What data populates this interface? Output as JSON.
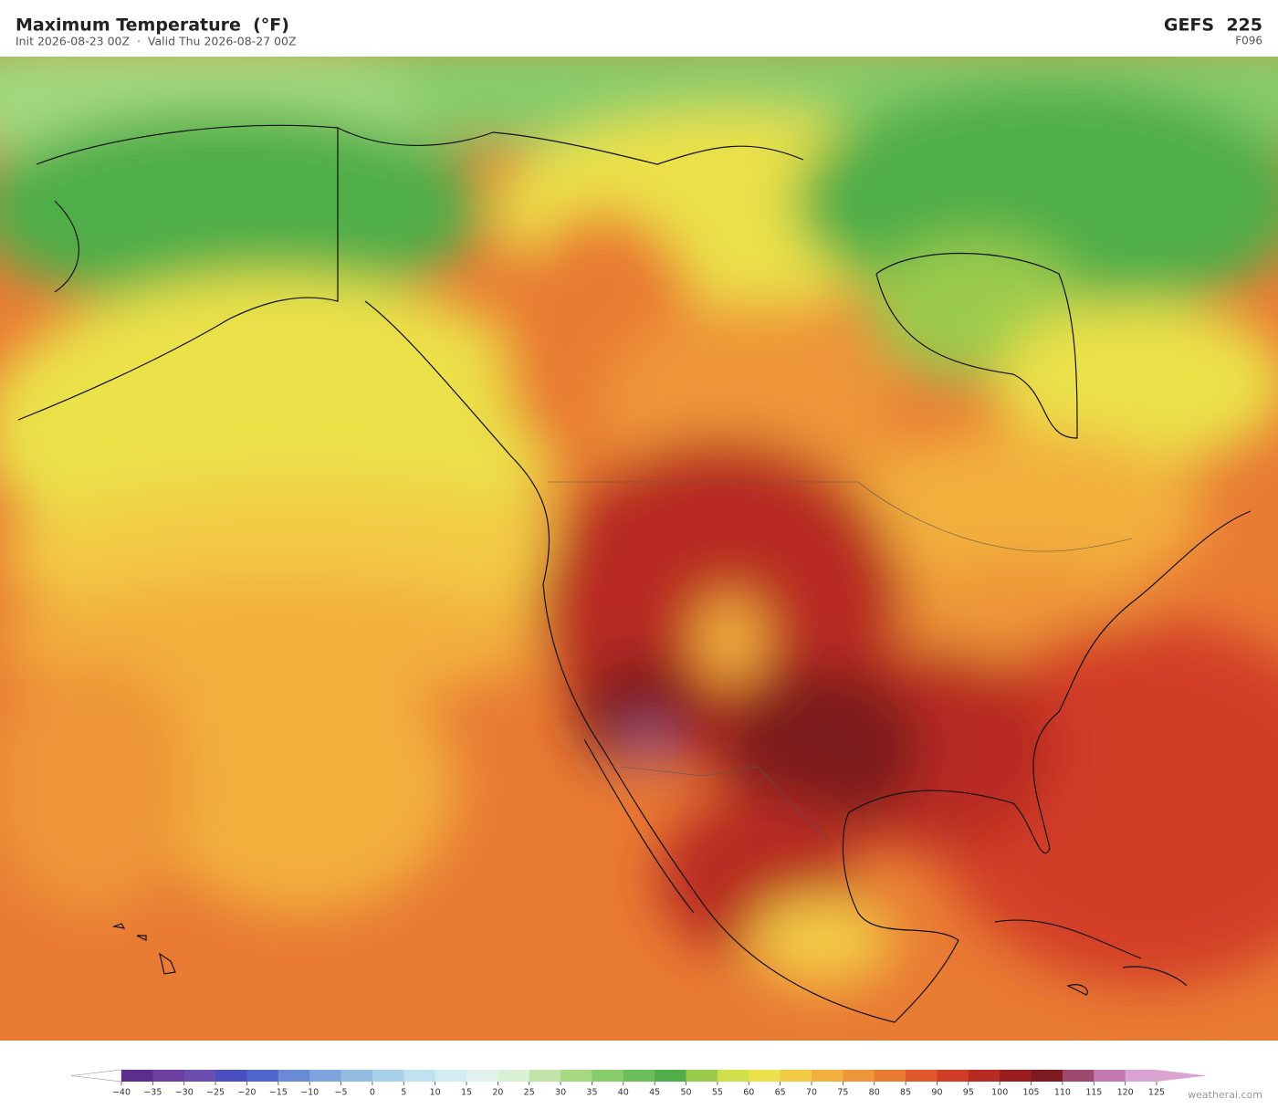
{
  "header": {
    "title": "Maximum Temperature  (°F)",
    "subtitle": "Init 2026-08-23 00Z  ·  Valid Thu 2026-08-27 00Z",
    "model": "GEFS  225",
    "forecast_hour": "F096"
  },
  "colorbar": {
    "ticks": [
      {
        "value": -40,
        "label": "−40"
      },
      {
        "value": -35,
        "label": "−35"
      },
      {
        "value": -30,
        "label": "−30"
      },
      {
        "value": -25,
        "label": "−25"
      },
      {
        "value": -20,
        "label": "−20"
      },
      {
        "value": -15,
        "label": "−15"
      },
      {
        "value": -10,
        "label": "−10"
      },
      {
        "value": -5,
        "label": "−5"
      },
      0,
      5,
      10,
      15,
      20,
      25,
      30,
      35,
      40,
      45,
      50,
      55,
      60,
      65,
      70,
      75,
      80,
      85,
      90,
      95,
      100,
      105,
      110,
      115,
      120,
      125
    ],
    "colors": [
      "#5b2d8e",
      "#6e3fa0",
      "#6a4fb0",
      "#4a4fc0",
      "#4f67cc",
      "#6a8ad6",
      "#7fa3dc",
      "#95bde3",
      "#a9d1ea",
      "#c0e1ef",
      "#d3ecf2",
      "#e2f3ef",
      "#d9f0d4",
      "#bfe3a8",
      "#a4d97f",
      "#86cc6a",
      "#6bbf5a",
      "#4fae4a",
      "#9bcb4b",
      "#cfe04a",
      "#ebe14a",
      "#f3cb44",
      "#f2b03e",
      "#ee9638",
      "#e97b33",
      "#e0582b",
      "#d23d26",
      "#b82b22",
      "#9a1e1e",
      "#7d1a1f",
      "#9e4a6e",
      "#c478b0",
      "#dba3d2"
    ],
    "extend_low_color": "#ffffff",
    "extend_high_color": "#dba3d2"
  },
  "footer": {
    "credit": "weatherai.com"
  }
}
